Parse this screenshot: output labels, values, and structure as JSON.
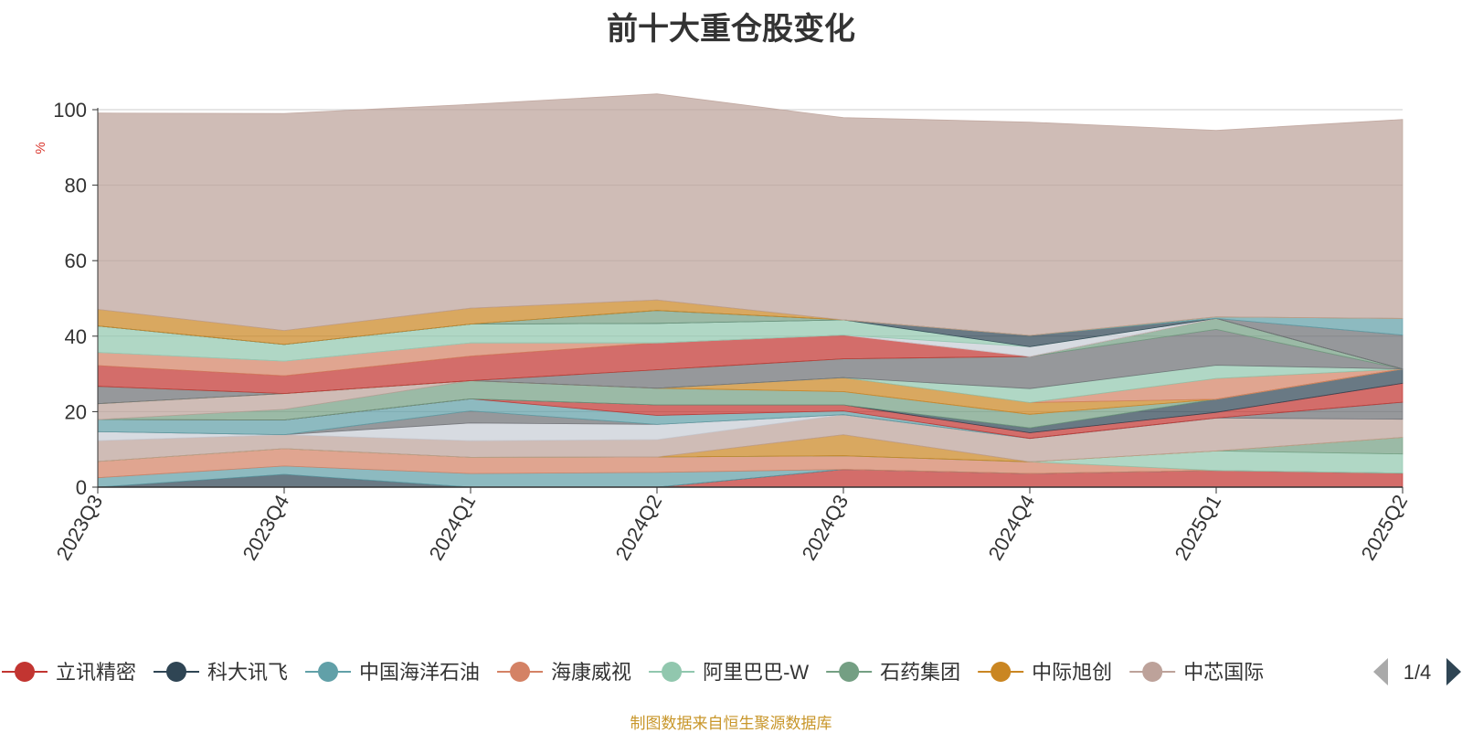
{
  "chart_data": {
    "type": "area",
    "title": "前十大重仓股变化",
    "ylabel": "%",
    "ylim": [
      0,
      100
    ],
    "yticks": [
      0,
      20,
      40,
      60,
      80,
      100
    ],
    "grid": true,
    "stacked": true,
    "categories": [
      "2023Q3",
      "2023Q4",
      "2024Q1",
      "2024Q2",
      "2024Q3",
      "2024Q4",
      "2025Q1",
      "2025Q2"
    ],
    "series": [
      {
        "name": "立讯精密",
        "color": "#c23531",
        "values": [
          0,
          0,
          0,
          0,
          4.7,
          3.6,
          4.4,
          3.7
        ]
      },
      {
        "name": "科大讯飞",
        "color": "#2f4554",
        "values": [
          0,
          3.4,
          0,
          0,
          0,
          0,
          0,
          0
        ]
      },
      {
        "name": "中国海洋石油",
        "color": "#61a0a8",
        "values": [
          2.5,
          2.2,
          3.6,
          3.9,
          0,
          0,
          0,
          0
        ]
      },
      {
        "name": "海康威视",
        "color": "#d48265",
        "values": [
          4.3,
          4.6,
          4.3,
          4.1,
          3.6,
          3.1,
          0,
          0
        ]
      },
      {
        "name": "阿里巴巴-W",
        "color": "#91c7ae",
        "values": [
          0,
          0,
          0,
          0,
          0,
          0,
          5.2,
          5.1
        ]
      },
      {
        "name": "石药集团",
        "color": "#749f83",
        "values": [
          0,
          0,
          0,
          0,
          0,
          0,
          0,
          4.4
        ]
      },
      {
        "name": "中际旭创",
        "color": "#ca8622",
        "values": [
          0,
          0,
          0,
          0,
          5.6,
          0,
          0,
          0
        ]
      },
      {
        "name": "中芯国际",
        "color": "#bda29a",
        "values": [
          5.5,
          3.7,
          4.4,
          4.6,
          5.3,
          6.2,
          8.7,
          4.8
        ]
      },
      {
        "name": "",
        "color": "#c8cdd6",
        "values": [
          2.4,
          0,
          4.7,
          4.0,
          0,
          0,
          0,
          0
        ]
      },
      {
        "name": "",
        "color": "#6e7074",
        "values": [
          0,
          0,
          3.2,
          0,
          0,
          0,
          0,
          4.5
        ]
      },
      {
        "name": "",
        "color": "#61a0a8",
        "values": [
          3.2,
          3.9,
          3.2,
          2.4,
          1.0,
          0,
          0,
          0
        ]
      },
      {
        "name": "",
        "color": "#c23531",
        "values": [
          0,
          0,
          0,
          2.8,
          1.6,
          1.5,
          1.5,
          5.0
        ]
      },
      {
        "name": "",
        "color": "#2f4554",
        "values": [
          0,
          0,
          0,
          0,
          0,
          1.3,
          3.5,
          3.8
        ]
      },
      {
        "name": "",
        "color": "#749f83",
        "values": [
          0,
          2.8,
          4.8,
          4.4,
          3.5,
          3.6,
          0,
          0
        ]
      },
      {
        "name": "",
        "color": "#bda29a",
        "values": [
          4.2,
          4.2,
          0,
          0,
          0,
          0,
          0,
          0
        ]
      },
      {
        "name": "",
        "color": "#ca8622",
        "values": [
          0,
          0,
          0,
          0,
          3.7,
          3.1,
          0,
          0
        ]
      },
      {
        "name": "",
        "color": "#d48265",
        "values": [
          0,
          0,
          0,
          0,
          0,
          0,
          5.5,
          0
        ]
      },
      {
        "name": "",
        "color": "#91c7ae",
        "values": [
          0,
          0,
          0,
          0,
          0,
          3.7,
          3.5,
          0
        ]
      },
      {
        "name": "",
        "color": "#6e7074",
        "values": [
          4.6,
          0,
          0,
          4.9,
          5.0,
          8.5,
          9.5,
          0
        ]
      },
      {
        "name": "",
        "color": "#749f83",
        "values": [
          0,
          0,
          0,
          0,
          0,
          0,
          2.9,
          0
        ]
      },
      {
        "name": "",
        "color": "#c23531",
        "values": [
          5.5,
          4.7,
          6.5,
          7.1,
          6.3,
          0,
          0,
          0
        ]
      },
      {
        "name": "",
        "color": "#d48265",
        "values": [
          3.5,
          3.9,
          3.5,
          0,
          0,
          0,
          0,
          0
        ]
      },
      {
        "name": "",
        "color": "#c8cdd6",
        "values": [
          0,
          0,
          0,
          0,
          0,
          2.6,
          0,
          0
        ]
      },
      {
        "name": "",
        "color": "#91c7ae",
        "values": [
          7.0,
          4.4,
          5.0,
          5.2,
          4.0,
          0,
          0,
          0
        ]
      },
      {
        "name": "",
        "color": "#2f4554",
        "values": [
          0,
          0,
          0,
          0,
          0,
          3.0,
          0,
          0
        ]
      },
      {
        "name": "",
        "color": "#749f83",
        "values": [
          0,
          0,
          0,
          3.4,
          0,
          0,
          0,
          0
        ]
      },
      {
        "name": "",
        "color": "#6e7074",
        "values": [
          0,
          0,
          0,
          0,
          0,
          0,
          0,
          9.0
        ]
      },
      {
        "name": "",
        "color": "#61a0a8",
        "values": [
          0,
          0,
          0,
          0,
          0,
          0,
          0.4,
          4.4
        ]
      },
      {
        "name": "",
        "color": "#ca8622",
        "values": [
          4.4,
          3.7,
          4.2,
          2.8,
          0,
          0,
          0,
          0
        ]
      },
      {
        "name": "",
        "color": "#bda29a",
        "values": [
          52.0,
          57.5,
          54.0,
          54.6,
          53.6,
          56.5,
          49.4,
          52.7
        ]
      }
    ],
    "legend": {
      "position": "bottom",
      "visible_items": [
        "立讯精密",
        "科大讯飞",
        "中国海洋石油",
        "海康威视",
        "阿里巴巴-W",
        "石药集团",
        "中际旭创",
        "中芯国际"
      ],
      "page_text": "1/4"
    }
  },
  "footer": {
    "source": "制图数据来自恒生聚源数据库"
  }
}
